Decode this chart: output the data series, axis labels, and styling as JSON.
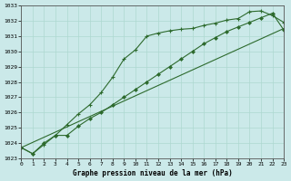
{
  "title": "Graphe pression niveau de la mer (hPa)",
  "bg_color": "#cbe9e9",
  "grid_color": "#add8d0",
  "line_color": "#2d6a2d",
  "xlim": [
    0,
    23
  ],
  "ylim": [
    1023,
    1033
  ],
  "xticks": [
    0,
    1,
    2,
    3,
    4,
    5,
    6,
    7,
    8,
    9,
    10,
    11,
    12,
    13,
    14,
    15,
    16,
    17,
    18,
    19,
    20,
    21,
    22,
    23
  ],
  "yticks": [
    1023,
    1024,
    1025,
    1026,
    1027,
    1028,
    1029,
    1030,
    1031,
    1032,
    1033
  ],
  "series1_markers": {
    "x": [
      0,
      1,
      2,
      3,
      4,
      5,
      6,
      7,
      8,
      9,
      10,
      11,
      12,
      13,
      14,
      15,
      16,
      17,
      18,
      19,
      20,
      21,
      22,
      23
    ],
    "y": [
      1023.7,
      1023.3,
      1023.9,
      1024.5,
      1025.2,
      1025.9,
      1026.5,
      1027.3,
      1028.3,
      1029.5,
      1030.1,
      1031.0,
      1031.2,
      1031.35,
      1031.45,
      1031.5,
      1031.7,
      1031.85,
      1032.05,
      1032.15,
      1032.6,
      1032.65,
      1032.35,
      1031.9
    ]
  },
  "series2_no_markers": {
    "x": [
      0,
      23
    ],
    "y": [
      1023.7,
      1031.5
    ]
  },
  "series3_diamonds": {
    "x": [
      0,
      1,
      2,
      3,
      4,
      5,
      6,
      7,
      8,
      9,
      10,
      11,
      12,
      13,
      14,
      15,
      16,
      17,
      18,
      19,
      20,
      21,
      22,
      23
    ],
    "y": [
      1023.7,
      1023.3,
      1024.0,
      1024.5,
      1024.5,
      1025.1,
      1025.6,
      1026.0,
      1026.5,
      1027.0,
      1027.5,
      1028.0,
      1028.5,
      1029.0,
      1029.5,
      1030.0,
      1030.5,
      1030.9,
      1031.3,
      1031.6,
      1031.9,
      1032.2,
      1032.5,
      1031.4
    ]
  }
}
